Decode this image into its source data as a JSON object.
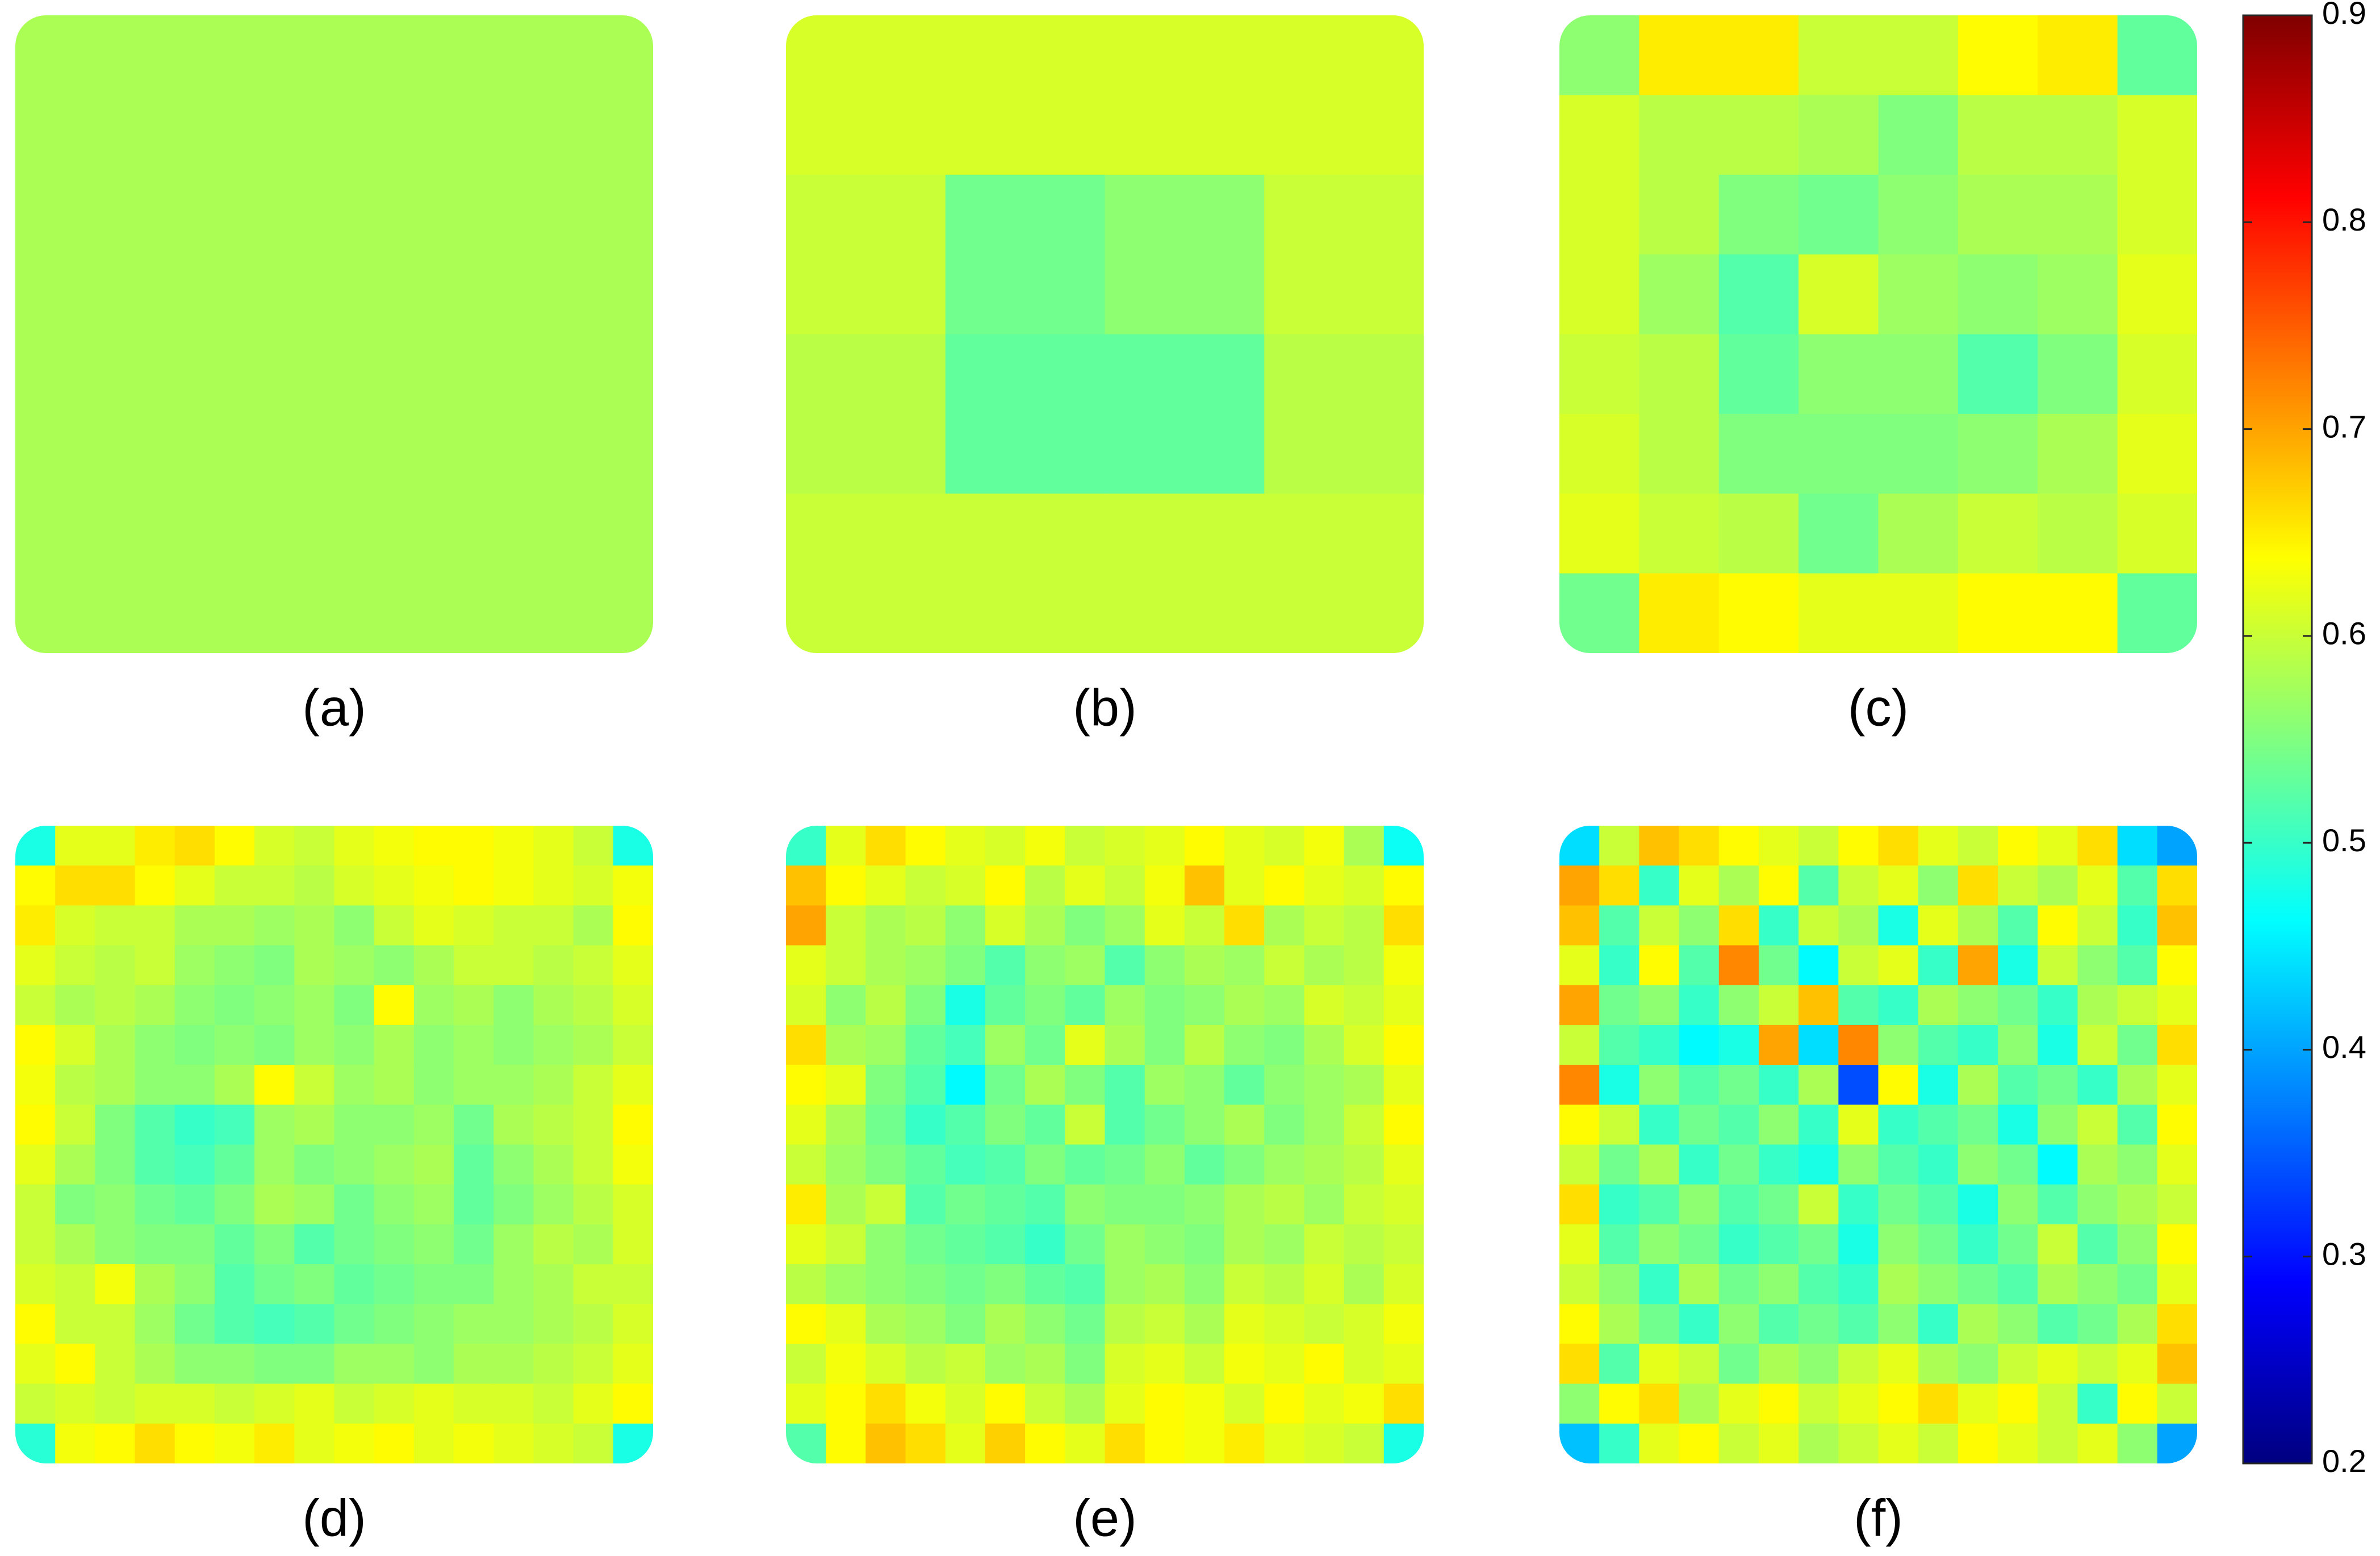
{
  "chart_data": [
    {
      "type": "heatmap",
      "label": "(a)",
      "values": [
        [
          0.58
        ]
      ]
    },
    {
      "type": "heatmap",
      "label": "(b)",
      "values": [
        [
          0.61,
          0.61,
          0.61,
          0.61
        ],
        [
          0.6,
          0.54,
          0.56,
          0.6
        ],
        [
          0.59,
          0.53,
          0.53,
          0.59
        ],
        [
          0.6,
          0.6,
          0.6,
          0.6
        ]
      ]
    },
    {
      "type": "heatmap",
      "label": "(c)",
      "values": [
        [
          0.56,
          0.65,
          0.65,
          0.6,
          0.6,
          0.64,
          0.65,
          0.53
        ],
        [
          0.61,
          0.59,
          0.59,
          0.58,
          0.55,
          0.59,
          0.59,
          0.61
        ],
        [
          0.61,
          0.59,
          0.55,
          0.54,
          0.56,
          0.58,
          0.58,
          0.61
        ],
        [
          0.61,
          0.57,
          0.52,
          0.61,
          0.57,
          0.56,
          0.57,
          0.62
        ],
        [
          0.6,
          0.59,
          0.53,
          0.56,
          0.56,
          0.52,
          0.55,
          0.61
        ],
        [
          0.61,
          0.59,
          0.55,
          0.55,
          0.55,
          0.56,
          0.58,
          0.62
        ],
        [
          0.62,
          0.6,
          0.59,
          0.54,
          0.58,
          0.6,
          0.59,
          0.61
        ],
        [
          0.54,
          0.65,
          0.64,
          0.62,
          0.62,
          0.64,
          0.64,
          0.53
        ]
      ]
    },
    {
      "type": "heatmap",
      "label": "(d)",
      "values": [
        [
          0.48,
          0.62,
          0.62,
          0.65,
          0.66,
          0.64,
          0.61,
          0.6,
          0.62,
          0.63,
          0.64,
          0.64,
          0.63,
          0.62,
          0.6,
          0.48
        ],
        [
          0.64,
          0.66,
          0.66,
          0.64,
          0.62,
          0.6,
          0.6,
          0.59,
          0.61,
          0.62,
          0.63,
          0.64,
          0.63,
          0.62,
          0.61,
          0.63
        ],
        [
          0.65,
          0.61,
          0.6,
          0.6,
          0.58,
          0.58,
          0.57,
          0.58,
          0.56,
          0.6,
          0.62,
          0.61,
          0.6,
          0.6,
          0.58,
          0.64
        ],
        [
          0.62,
          0.6,
          0.59,
          0.6,
          0.57,
          0.56,
          0.55,
          0.58,
          0.57,
          0.56,
          0.58,
          0.6,
          0.6,
          0.59,
          0.6,
          0.62
        ],
        [
          0.6,
          0.58,
          0.59,
          0.58,
          0.56,
          0.55,
          0.56,
          0.57,
          0.55,
          0.64,
          0.57,
          0.58,
          0.56,
          0.58,
          0.59,
          0.61
        ],
        [
          0.64,
          0.61,
          0.58,
          0.56,
          0.55,
          0.56,
          0.55,
          0.57,
          0.56,
          0.58,
          0.56,
          0.57,
          0.56,
          0.57,
          0.58,
          0.6
        ],
        [
          0.63,
          0.59,
          0.58,
          0.56,
          0.56,
          0.58,
          0.64,
          0.6,
          0.57,
          0.58,
          0.56,
          0.57,
          0.57,
          0.58,
          0.6,
          0.62
        ],
        [
          0.64,
          0.6,
          0.55,
          0.52,
          0.5,
          0.51,
          0.57,
          0.58,
          0.56,
          0.56,
          0.57,
          0.54,
          0.58,
          0.59,
          0.6,
          0.64
        ],
        [
          0.62,
          0.58,
          0.55,
          0.52,
          0.51,
          0.53,
          0.57,
          0.55,
          0.56,
          0.57,
          0.58,
          0.53,
          0.56,
          0.58,
          0.6,
          0.63
        ],
        [
          0.6,
          0.55,
          0.56,
          0.54,
          0.53,
          0.55,
          0.58,
          0.57,
          0.54,
          0.56,
          0.57,
          0.53,
          0.55,
          0.57,
          0.59,
          0.61
        ],
        [
          0.6,
          0.58,
          0.56,
          0.55,
          0.55,
          0.53,
          0.55,
          0.52,
          0.54,
          0.55,
          0.56,
          0.54,
          0.57,
          0.59,
          0.58,
          0.61
        ],
        [
          0.61,
          0.6,
          0.63,
          0.58,
          0.56,
          0.52,
          0.54,
          0.55,
          0.53,
          0.54,
          0.55,
          0.55,
          0.57,
          0.58,
          0.6,
          0.6
        ],
        [
          0.64,
          0.6,
          0.6,
          0.57,
          0.54,
          0.52,
          0.51,
          0.52,
          0.54,
          0.55,
          0.56,
          0.57,
          0.57,
          0.58,
          0.59,
          0.61
        ],
        [
          0.62,
          0.64,
          0.6,
          0.58,
          0.56,
          0.56,
          0.55,
          0.55,
          0.57,
          0.57,
          0.56,
          0.58,
          0.58,
          0.59,
          0.6,
          0.62
        ],
        [
          0.6,
          0.61,
          0.6,
          0.61,
          0.61,
          0.6,
          0.61,
          0.62,
          0.6,
          0.61,
          0.62,
          0.61,
          0.61,
          0.6,
          0.62,
          0.64
        ],
        [
          0.49,
          0.63,
          0.64,
          0.66,
          0.64,
          0.63,
          0.65,
          0.62,
          0.63,
          0.64,
          0.62,
          0.63,
          0.62,
          0.61,
          0.6,
          0.48
        ]
      ]
    },
    {
      "type": "heatmap",
      "label": "(e)",
      "values": [
        [
          0.5,
          0.62,
          0.66,
          0.64,
          0.62,
          0.61,
          0.63,
          0.6,
          0.61,
          0.62,
          0.64,
          0.62,
          0.61,
          0.63,
          0.58,
          0.47
        ],
        [
          0.68,
          0.64,
          0.62,
          0.6,
          0.61,
          0.64,
          0.59,
          0.62,
          0.6,
          0.63,
          0.68,
          0.62,
          0.64,
          0.62,
          0.61,
          0.64
        ],
        [
          0.7,
          0.6,
          0.58,
          0.59,
          0.56,
          0.61,
          0.58,
          0.55,
          0.57,
          0.62,
          0.6,
          0.66,
          0.58,
          0.6,
          0.59,
          0.66
        ],
        [
          0.62,
          0.6,
          0.58,
          0.57,
          0.55,
          0.52,
          0.56,
          0.57,
          0.52,
          0.56,
          0.58,
          0.57,
          0.6,
          0.58,
          0.59,
          0.63
        ],
        [
          0.61,
          0.56,
          0.59,
          0.55,
          0.48,
          0.53,
          0.55,
          0.53,
          0.57,
          0.55,
          0.56,
          0.58,
          0.57,
          0.61,
          0.6,
          0.62
        ],
        [
          0.66,
          0.58,
          0.57,
          0.53,
          0.51,
          0.57,
          0.54,
          0.62,
          0.58,
          0.55,
          0.59,
          0.56,
          0.55,
          0.58,
          0.61,
          0.64
        ],
        [
          0.64,
          0.62,
          0.55,
          0.52,
          0.46,
          0.54,
          0.58,
          0.55,
          0.52,
          0.57,
          0.56,
          0.53,
          0.56,
          0.57,
          0.58,
          0.62
        ],
        [
          0.62,
          0.58,
          0.54,
          0.5,
          0.52,
          0.55,
          0.53,
          0.6,
          0.52,
          0.54,
          0.56,
          0.58,
          0.55,
          0.57,
          0.6,
          0.64
        ],
        [
          0.6,
          0.57,
          0.55,
          0.53,
          0.51,
          0.52,
          0.55,
          0.53,
          0.54,
          0.56,
          0.53,
          0.55,
          0.57,
          0.58,
          0.59,
          0.62
        ],
        [
          0.65,
          0.58,
          0.6,
          0.52,
          0.54,
          0.53,
          0.52,
          0.56,
          0.55,
          0.55,
          0.56,
          0.58,
          0.59,
          0.57,
          0.6,
          0.61
        ],
        [
          0.62,
          0.6,
          0.56,
          0.54,
          0.53,
          0.52,
          0.5,
          0.54,
          0.57,
          0.56,
          0.55,
          0.58,
          0.57,
          0.6,
          0.59,
          0.6
        ],
        [
          0.59,
          0.57,
          0.56,
          0.55,
          0.54,
          0.55,
          0.53,
          0.52,
          0.57,
          0.58,
          0.56,
          0.6,
          0.59,
          0.61,
          0.58,
          0.61
        ],
        [
          0.64,
          0.62,
          0.58,
          0.57,
          0.55,
          0.58,
          0.56,
          0.54,
          0.59,
          0.6,
          0.58,
          0.62,
          0.61,
          0.6,
          0.61,
          0.63
        ],
        [
          0.6,
          0.63,
          0.61,
          0.59,
          0.6,
          0.57,
          0.58,
          0.55,
          0.61,
          0.62,
          0.6,
          0.63,
          0.62,
          0.64,
          0.61,
          0.62
        ],
        [
          0.62,
          0.64,
          0.66,
          0.63,
          0.61,
          0.64,
          0.6,
          0.58,
          0.62,
          0.64,
          0.63,
          0.61,
          0.64,
          0.62,
          0.63,
          0.66
        ],
        [
          0.52,
          0.64,
          0.68,
          0.66,
          0.62,
          0.67,
          0.64,
          0.62,
          0.66,
          0.64,
          0.63,
          0.65,
          0.62,
          0.61,
          0.6,
          0.48
        ]
      ]
    },
    {
      "type": "heatmap",
      "label": "(f)",
      "values": [
        [
          0.44,
          0.6,
          0.68,
          0.66,
          0.64,
          0.62,
          0.6,
          0.64,
          0.66,
          0.62,
          0.6,
          0.64,
          0.62,
          0.66,
          0.44,
          0.4
        ],
        [
          0.7,
          0.66,
          0.5,
          0.62,
          0.58,
          0.64,
          0.52,
          0.6,
          0.62,
          0.56,
          0.66,
          0.6,
          0.58,
          0.62,
          0.52,
          0.66
        ],
        [
          0.68,
          0.52,
          0.6,
          0.56,
          0.66,
          0.5,
          0.6,
          0.58,
          0.48,
          0.62,
          0.58,
          0.52,
          0.64,
          0.6,
          0.5,
          0.68
        ],
        [
          0.62,
          0.5,
          0.64,
          0.52,
          0.72,
          0.54,
          0.46,
          0.6,
          0.62,
          0.5,
          0.7,
          0.48,
          0.6,
          0.56,
          0.52,
          0.64
        ],
        [
          0.7,
          0.54,
          0.56,
          0.5,
          0.56,
          0.6,
          0.68,
          0.52,
          0.5,
          0.58,
          0.56,
          0.54,
          0.5,
          0.58,
          0.6,
          0.62
        ],
        [
          0.6,
          0.52,
          0.5,
          0.46,
          0.48,
          0.7,
          0.44,
          0.72,
          0.56,
          0.52,
          0.5,
          0.56,
          0.48,
          0.6,
          0.54,
          0.66
        ],
        [
          0.72,
          0.48,
          0.56,
          0.52,
          0.54,
          0.5,
          0.58,
          0.34,
          0.64,
          0.48,
          0.58,
          0.52,
          0.54,
          0.5,
          0.58,
          0.62
        ],
        [
          0.64,
          0.6,
          0.5,
          0.54,
          0.52,
          0.56,
          0.5,
          0.62,
          0.5,
          0.52,
          0.54,
          0.48,
          0.56,
          0.6,
          0.52,
          0.64
        ],
        [
          0.6,
          0.54,
          0.58,
          0.5,
          0.54,
          0.5,
          0.48,
          0.56,
          0.52,
          0.5,
          0.56,
          0.54,
          0.46,
          0.58,
          0.56,
          0.62
        ],
        [
          0.66,
          0.5,
          0.52,
          0.56,
          0.52,
          0.54,
          0.6,
          0.5,
          0.54,
          0.52,
          0.48,
          0.56,
          0.52,
          0.56,
          0.58,
          0.6
        ],
        [
          0.62,
          0.52,
          0.56,
          0.54,
          0.5,
          0.52,
          0.54,
          0.48,
          0.56,
          0.54,
          0.5,
          0.54,
          0.6,
          0.52,
          0.56,
          0.64
        ],
        [
          0.6,
          0.56,
          0.5,
          0.58,
          0.54,
          0.56,
          0.52,
          0.5,
          0.58,
          0.56,
          0.54,
          0.52,
          0.58,
          0.56,
          0.54,
          0.62
        ],
        [
          0.64,
          0.58,
          0.54,
          0.5,
          0.56,
          0.52,
          0.54,
          0.52,
          0.56,
          0.5,
          0.58,
          0.56,
          0.52,
          0.54,
          0.58,
          0.66
        ],
        [
          0.66,
          0.52,
          0.62,
          0.6,
          0.54,
          0.58,
          0.56,
          0.6,
          0.62,
          0.58,
          0.56,
          0.6,
          0.62,
          0.6,
          0.62,
          0.68
        ],
        [
          0.56,
          0.64,
          0.66,
          0.58,
          0.62,
          0.64,
          0.6,
          0.62,
          0.64,
          0.66,
          0.62,
          0.64,
          0.6,
          0.5,
          0.64,
          0.6
        ],
        [
          0.42,
          0.5,
          0.62,
          0.64,
          0.6,
          0.62,
          0.58,
          0.6,
          0.62,
          0.6,
          0.64,
          0.62,
          0.6,
          0.62,
          0.56,
          0.4
        ]
      ]
    },
    {
      "type": "colorbar",
      "colormap": "jet",
      "ylim": [
        0.2,
        0.9
      ],
      "yticks": [
        0.2,
        0.3,
        0.4,
        0.5,
        0.6,
        0.7,
        0.8,
        0.9
      ]
    }
  ]
}
